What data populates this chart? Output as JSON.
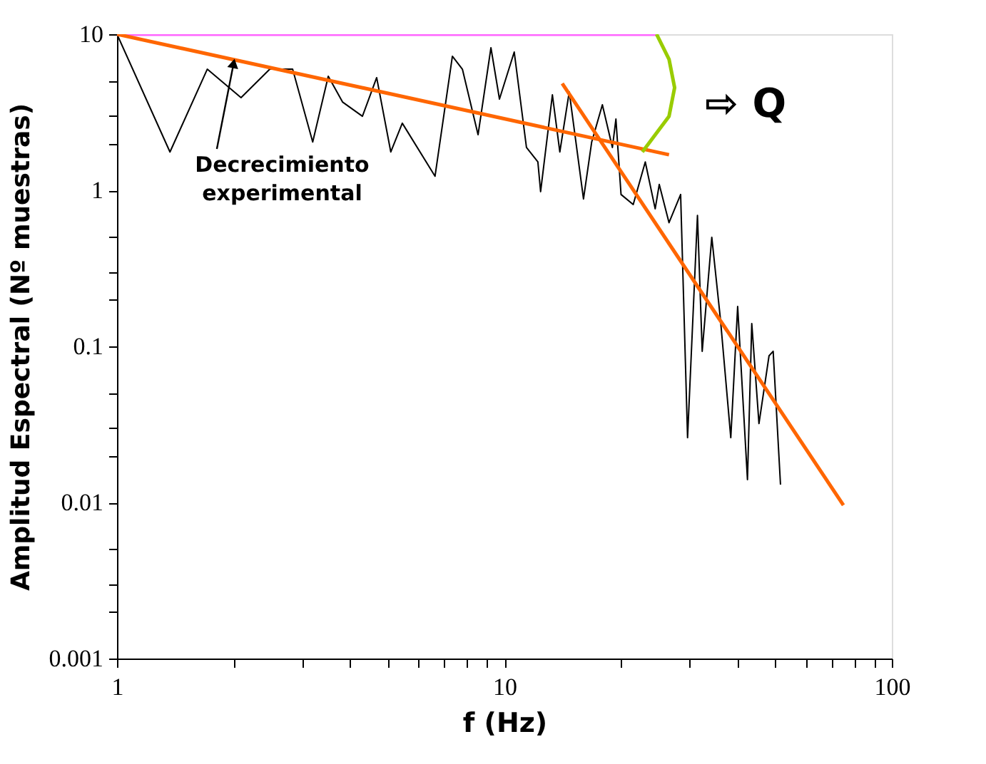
{
  "chart_data": {
    "type": "line",
    "xlabel": "f (Hz)",
    "ylabel": "Amplitud Espectral (Nº muestras)",
    "log": "xy",
    "grid": false,
    "marker": "none",
    "line_style": "solid",
    "xlim": [
      1,
      100
    ],
    "ylim": [
      0.001,
      10
    ],
    "xticks": [
      1,
      {
        "value": 2,
        "label": null
      },
      {
        "value": 3,
        "label": null
      },
      {
        "value": 4,
        "label": null
      },
      {
        "value": 5,
        "label": null
      },
      {
        "value": 6,
        "label": null
      },
      {
        "value": 7,
        "label": null
      },
      {
        "value": 8,
        "label": null
      },
      {
        "value": 9,
        "label": null
      },
      10,
      {
        "value": 20,
        "label": null
      },
      {
        "value": 30,
        "label": null
      },
      {
        "value": 40,
        "label": null
      },
      {
        "value": 50,
        "label": null
      },
      {
        "value": 60,
        "label": null
      },
      {
        "value": 70,
        "label": null
      },
      {
        "value": 80,
        "label": null
      },
      {
        "value": 90,
        "label": null
      },
      100
    ],
    "yticks": [
      0.001,
      {
        "value": 0.002,
        "label": null
      },
      {
        "value": 0.003,
        "label": null
      },
      {
        "value": 0.005,
        "label": null
      },
      0.01,
      {
        "value": 0.02,
        "label": null
      },
      {
        "value": 0.03,
        "label": null
      },
      {
        "value": 0.05,
        "label": null
      },
      0.1,
      {
        "value": 0.2,
        "label": null
      },
      {
        "value": 0.3,
        "label": null
      },
      {
        "value": 0.5,
        "label": null
      },
      1,
      {
        "value": 2,
        "label": null
      },
      {
        "value": 3,
        "label": null
      },
      {
        "value": 5,
        "label": null
      },
      10
    ],
    "series": [
      {
        "color": "#000000",
        "x": [
          1,
          1.37,
          1.71,
          2.09,
          2.48,
          2.84,
          3.2,
          3.51,
          3.82,
          4.3,
          4.68,
          5.09,
          5.45,
          6.62,
          7.34,
          7.79,
          8.55,
          9.23,
          9.71,
          10.6,
          11.4,
          12.2,
          12.4,
          13.3,
          13.9,
          14.7,
          16.0,
          16.8,
          17.9,
          19.0,
          19.4,
          20.0,
          21.5,
          23.1,
          24.5,
          25.1,
          26.6,
          28.5,
          29.7,
          31.5,
          32.4,
          34.3,
          36.1,
          38.4,
          40.0,
          42.4,
          43.5,
          45.4,
          48.2,
          49.4,
          51.6
        ],
        "values": [
          10,
          1.76,
          5.97,
          3.92,
          5.97,
          5.97,
          2.04,
          5.38,
          3.68,
          2.98,
          5.27,
          1.76,
          2.69,
          1.23,
          7.22,
          5.97,
          2.27,
          8.19,
          3.84,
          7.69,
          1.88,
          1.52,
          0.98,
          4.09,
          1.76,
          4.27,
          0.88,
          2.04,
          3.53,
          1.88,
          2.86,
          0.94,
          0.81,
          1.52,
          0.76,
          1.09,
          0.62,
          0.94,
          0.026,
          0.69,
          0.093,
          0.5,
          0.15,
          0.026,
          0.18,
          0.014,
          0.14,
          0.032,
          0.087,
          0.093,
          0.013
        ]
      },
      {
        "color": "#ff66ff",
        "x": [
          1,
          24.7
        ],
        "values": [
          10,
          10
        ]
      },
      {
        "color": "#ff6600",
        "x": [
          1,
          26.6
        ],
        "values": [
          10,
          1.69
        ]
      },
      {
        "color": "#ff6600",
        "x": [
          14.1,
          75
        ],
        "values": [
          4.84,
          0.0096
        ]
      },
      {
        "color": "#99cc00",
        "x": [
          24.7,
          26.6,
          27.5,
          26.6,
          22.7
        ],
        "values": [
          10,
          6.92,
          4.54,
          2.98,
          1.76
        ]
      }
    ],
    "annotations": [
      {
        "text": "Decrecimiento\nexperimental",
        "x": 2.0,
        "y": 6.5
      },
      "⇨ Q"
    ]
  }
}
